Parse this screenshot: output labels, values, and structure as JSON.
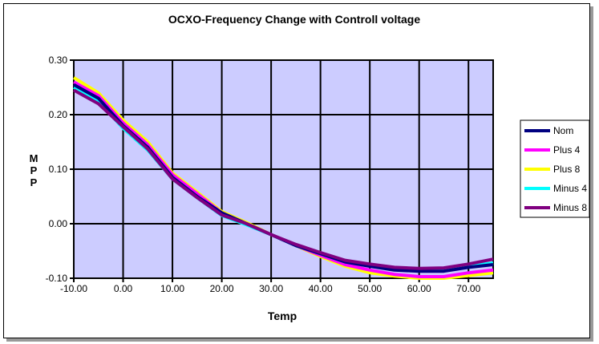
{
  "chart_data": {
    "type": "line",
    "title": "OCXO-Frequency Change with Controll voltage",
    "xlabel": "Temp",
    "ylabel": "MPP",
    "xlim": [
      -10,
      75
    ],
    "ylim": [
      -0.1,
      0.3
    ],
    "xticks": [
      "-10.00",
      "0.00",
      "10.00",
      "20.00",
      "30.00",
      "40.00",
      "50.00",
      "60.00",
      "70.00"
    ],
    "yticks": [
      "0.30",
      "0.20",
      "0.10",
      "0.00",
      "-0.10"
    ],
    "grid": true,
    "legend": "right",
    "plot_background": "#ccccff",
    "x": [
      -10,
      -5,
      0,
      5,
      10,
      15,
      20,
      25,
      30,
      35,
      40,
      45,
      50,
      55,
      60,
      65,
      70,
      75
    ],
    "series": [
      {
        "name": "Nom",
        "color": "#000080",
        "values": [
          0.255,
          0.23,
          0.18,
          0.14,
          0.085,
          0.05,
          0.02,
          0.0,
          -0.02,
          -0.04,
          -0.055,
          -0.07,
          -0.078,
          -0.085,
          -0.087,
          -0.087,
          -0.08,
          -0.075
        ]
      },
      {
        "name": "Plus 4",
        "color": "#ff00ff",
        "values": [
          0.26,
          0.235,
          0.185,
          0.145,
          0.09,
          0.055,
          0.02,
          0.0,
          -0.02,
          -0.04,
          -0.058,
          -0.075,
          -0.085,
          -0.093,
          -0.097,
          -0.097,
          -0.09,
          -0.085
        ]
      },
      {
        "name": "Plus 8",
        "color": "#ffff00",
        "values": [
          0.268,
          0.24,
          0.19,
          0.15,
          0.093,
          0.058,
          0.022,
          0.002,
          -0.02,
          -0.04,
          -0.06,
          -0.078,
          -0.09,
          -0.096,
          -0.1,
          -0.1,
          -0.095,
          -0.09
        ]
      },
      {
        "name": "Minus 4",
        "color": "#00ffff",
        "values": [
          0.25,
          0.225,
          0.175,
          0.135,
          0.082,
          0.048,
          0.015,
          -0.002,
          -0.02,
          -0.04,
          -0.055,
          -0.07,
          -0.077,
          -0.083,
          -0.085,
          -0.085,
          -0.078,
          -0.072
        ]
      },
      {
        "name": "Minus 8",
        "color": "#800080",
        "values": [
          0.245,
          0.22,
          0.178,
          0.137,
          0.082,
          0.048,
          0.016,
          0.0,
          -0.02,
          -0.038,
          -0.053,
          -0.067,
          -0.074,
          -0.08,
          -0.082,
          -0.081,
          -0.074,
          -0.065
        ]
      }
    ]
  }
}
